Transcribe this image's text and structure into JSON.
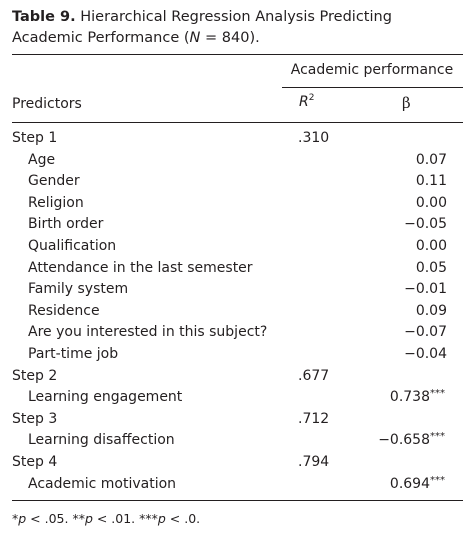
{
  "caption": {
    "label": "Table 9.",
    "title_pre": "Hierarchical Regression Analysis Predicting Academic Performance (",
    "n_symbol": "N",
    "title_post": " = 840)."
  },
  "header": {
    "group": "Academic performance",
    "predictors": "Predictors",
    "r2_base": "R",
    "r2_sup": "2",
    "beta": "β"
  },
  "rows": [
    {
      "name": "Step 1",
      "r2": ".310",
      "beta": "",
      "sig": ""
    },
    {
      "name": "Age",
      "r2": "",
      "beta": "0.07",
      "sig": ""
    },
    {
      "name": "Gender",
      "r2": "",
      "beta": "0.11",
      "sig": ""
    },
    {
      "name": "Religion",
      "r2": "",
      "beta": "0.00",
      "sig": ""
    },
    {
      "name": "Birth order",
      "r2": "",
      "beta": "−0.05",
      "sig": ""
    },
    {
      "name": "Qualification",
      "r2": "",
      "beta": "0.00",
      "sig": ""
    },
    {
      "name": "Attendance in the last semester",
      "r2": "",
      "beta": "0.05",
      "sig": ""
    },
    {
      "name": "Family system",
      "r2": "",
      "beta": "−0.01",
      "sig": ""
    },
    {
      "name": "Residence",
      "r2": "",
      "beta": "0.09",
      "sig": ""
    },
    {
      "name": "Are you interested in this subject?",
      "r2": "",
      "beta": "−0.07",
      "sig": ""
    },
    {
      "name": "Part-time job",
      "r2": "",
      "beta": "−0.04",
      "sig": ""
    },
    {
      "name": "Step 2",
      "r2": ".677",
      "beta": "",
      "sig": ""
    },
    {
      "name": "Learning engagement",
      "r2": "",
      "beta": "0.738",
      "sig": "***"
    },
    {
      "name": "Step 3",
      "r2": ".712",
      "beta": "",
      "sig": ""
    },
    {
      "name": "Learning disaffection",
      "r2": "",
      "beta": "−0.658",
      "sig": "***"
    },
    {
      "name": "Step 4",
      "r2": ".794",
      "beta": "",
      "sig": ""
    },
    {
      "name": "Academic motivation",
      "r2": "",
      "beta": "0.694",
      "sig": "***"
    }
  ],
  "footnote": {
    "s1": "*",
    "p1": "p",
    "t1": " < .05. ",
    "s2": "**",
    "p2": "p",
    "t2": " < .01. ",
    "s3": "***",
    "p3": "p",
    "t3": " < .0."
  }
}
